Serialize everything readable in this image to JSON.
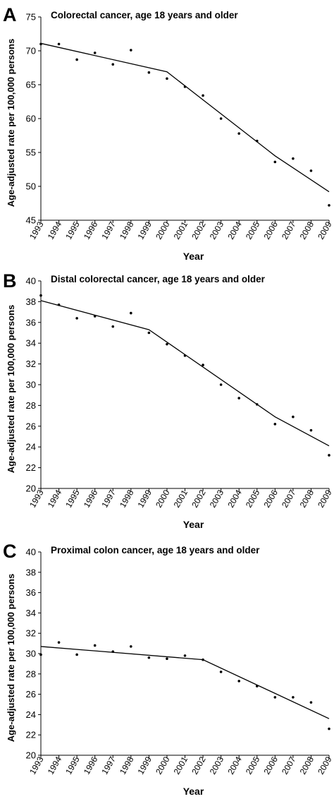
{
  "chart_data": [
    {
      "type": "scatter",
      "panel_label": "A",
      "title": "Colorectal cancer, age 18 years and older",
      "xlabel": "Year",
      "ylabel": "Age-adjusted rate per 100,000 persons",
      "x": [
        1993,
        1994,
        1995,
        1996,
        1997,
        1998,
        1999,
        2000,
        2001,
        2002,
        2003,
        2004,
        2005,
        2006,
        2007,
        2008,
        2009
      ],
      "ylim": [
        45,
        75
      ],
      "yticks": [
        45,
        50,
        55,
        60,
        65,
        70,
        75
      ],
      "series": [
        {
          "values": [
            71.0,
            71.0,
            68.7,
            69.7,
            68.0,
            70.1,
            66.8,
            65.9,
            64.7,
            63.4,
            60.0,
            57.8,
            56.7,
            53.6,
            54.1,
            52.3,
            47.2
          ]
        }
      ],
      "trend": {
        "x": [
          1993,
          2000,
          2006,
          2009
        ],
        "y": [
          71.1,
          66.9,
          54.5,
          49.2
        ]
      }
    },
    {
      "type": "scatter",
      "panel_label": "B",
      "title": "Distal colorectal cancer, age 18 years and older",
      "xlabel": "Year",
      "ylabel": "Age-adjusted rate per 100,000 persons",
      "x": [
        1993,
        1994,
        1995,
        1996,
        1997,
        1998,
        1999,
        2000,
        2001,
        2002,
        2003,
        2004,
        2005,
        2006,
        2007,
        2008,
        2009
      ],
      "ylim": [
        20,
        40
      ],
      "yticks": [
        20,
        22,
        24,
        26,
        28,
        30,
        32,
        34,
        36,
        38,
        40
      ],
      "series": [
        {
          "values": [
            38.6,
            37.7,
            36.4,
            36.6,
            35.6,
            36.9,
            35.0,
            33.9,
            32.8,
            31.9,
            30.0,
            28.7,
            28.1,
            26.2,
            26.9,
            25.6,
            23.2
          ]
        }
      ],
      "trend": {
        "x": [
          1993,
          1999,
          2006,
          2009
        ],
        "y": [
          38.1,
          35.3,
          26.9,
          24.1
        ]
      }
    },
    {
      "type": "scatter",
      "panel_label": "C",
      "title": "Proximal colon cancer, age 18 years and older",
      "xlabel": "Year",
      "ylabel": "Age-adjusted rate per 100,000 persons",
      "x": [
        1993,
        1994,
        1995,
        1996,
        1997,
        1998,
        1999,
        2000,
        2001,
        2002,
        2003,
        2004,
        2005,
        2006,
        2007,
        2008,
        2009
      ],
      "ylim": [
        20,
        40
      ],
      "yticks": [
        20,
        22,
        24,
        26,
        28,
        30,
        32,
        34,
        36,
        38,
        40
      ],
      "series": [
        {
          "values": [
            29.9,
            31.1,
            29.9,
            30.8,
            30.2,
            30.7,
            29.6,
            29.5,
            29.8,
            29.4,
            28.2,
            27.3,
            26.8,
            25.7,
            25.7,
            25.2,
            22.6
          ]
        }
      ],
      "trend": {
        "x": [
          1993,
          2002,
          2009
        ],
        "y": [
          30.7,
          29.4,
          23.6
        ]
      }
    }
  ]
}
